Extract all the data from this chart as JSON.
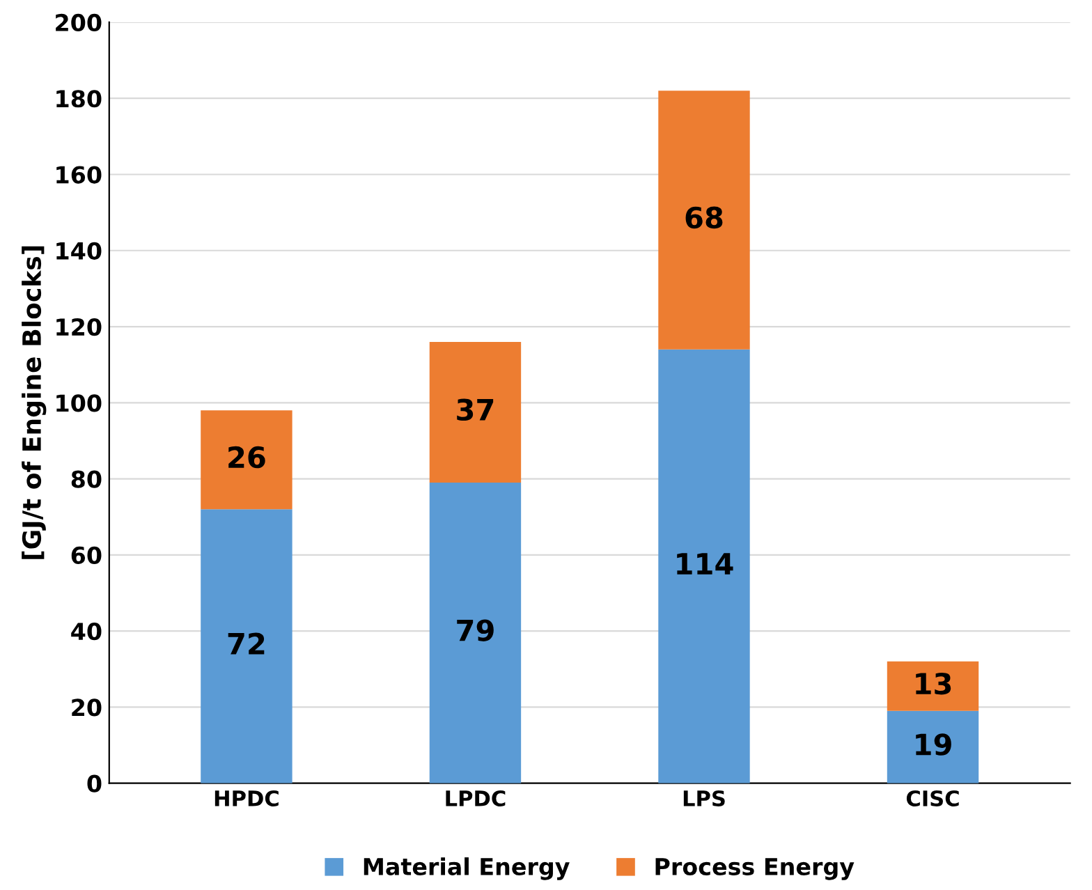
{
  "chart_data": {
    "type": "bar",
    "stacked": true,
    "ylabel": "[GJ/t of Engine Blocks]",
    "categories": [
      "HPDC",
      "LPDC",
      "LPS",
      "CISC"
    ],
    "series": [
      {
        "name": "Material Energy",
        "color": "#5b9bd5",
        "values": [
          72,
          79,
          114,
          19
        ]
      },
      {
        "name": "Process Energy",
        "color": "#ed7d31",
        "values": [
          26,
          37,
          68,
          13
        ]
      }
    ],
    "ylim": [
      0,
      200
    ],
    "yticks": [
      0,
      20,
      40,
      60,
      80,
      100,
      120,
      140,
      160,
      180,
      200
    ],
    "grid": "y",
    "legend": "bottom",
    "data_labels": true
  }
}
